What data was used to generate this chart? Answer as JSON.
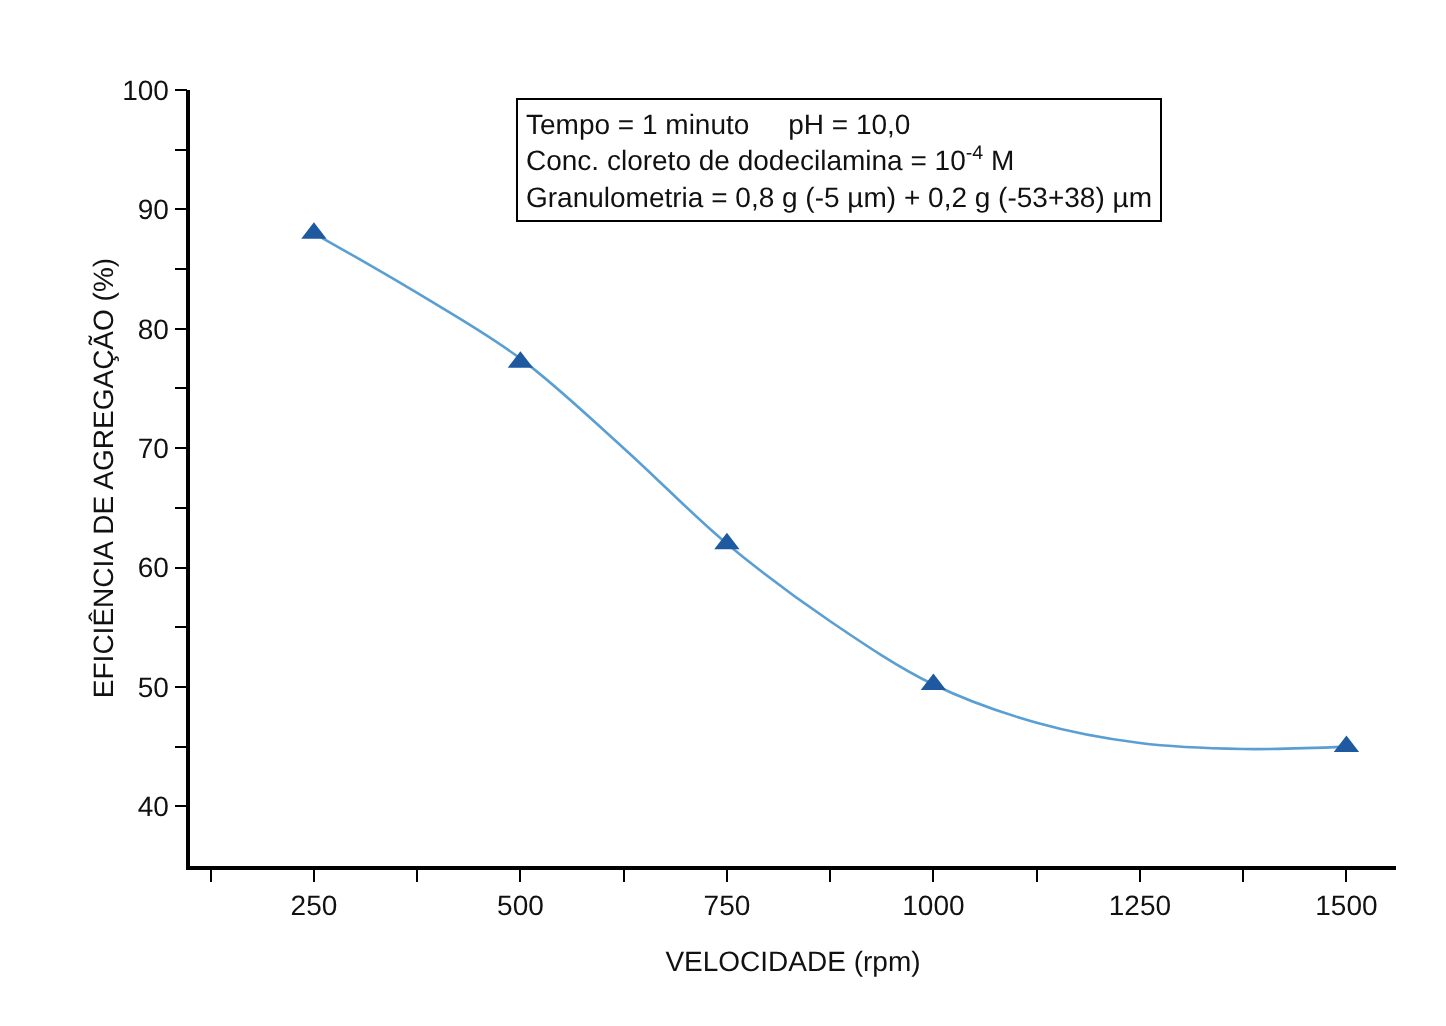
{
  "chart_data": {
    "type": "scatter",
    "xlabel": "VELOCIDADE (rpm)",
    "ylabel": "EFICIÊNCIA DE AGREGAÇÃO (%)",
    "annotations": [
      "Tempo = 1 minuto     pH = 10,0",
      "Conc. cloreto de dodecilamina = 10$^{-4}$ M",
      "Granulometria = 0,8 g (-5 µm) + 0,2 g (-53+38) µm"
    ],
    "series": [
      {
        "type": "line",
        "color": "#5a9fd4",
        "marker": "none",
        "x": [
          250,
          375,
          500,
          625,
          750,
          875,
          1000,
          1125,
          1250,
          1375,
          1500
        ],
        "values": [
          88,
          83,
          77.5,
          70,
          62,
          55.5,
          50.2,
          47,
          45.3,
          44.8,
          45
        ]
      },
      {
        "color": "#1f5aa0",
        "marker": "triangle",
        "x": [
          250,
          500,
          750,
          1000,
          1500
        ],
        "values": [
          88,
          77.2,
          62,
          50.2,
          45
        ]
      }
    ],
    "xlim": [
      100,
      1560
    ],
    "ylim": [
      35,
      100
    ],
    "xticks": [
      {
        "value": 125,
        "label": null
      },
      250,
      {
        "value": 375,
        "label": null
      },
      500,
      {
        "value": 625,
        "label": null
      },
      750,
      {
        "value": 875,
        "label": null
      },
      1000,
      {
        "value": 1125,
        "label": null
      },
      1250,
      {
        "value": 1375,
        "label": null
      },
      1500
    ],
    "yticks": [
      40,
      {
        "value": 45,
        "label": null
      },
      50,
      {
        "value": 55,
        "label": null
      },
      60,
      {
        "value": 65,
        "label": null
      },
      70,
      {
        "value": 75,
        "label": null
      },
      80,
      {
        "value": 85,
        "label": null
      },
      90,
      {
        "value": 95,
        "label": null
      },
      100
    ]
  }
}
